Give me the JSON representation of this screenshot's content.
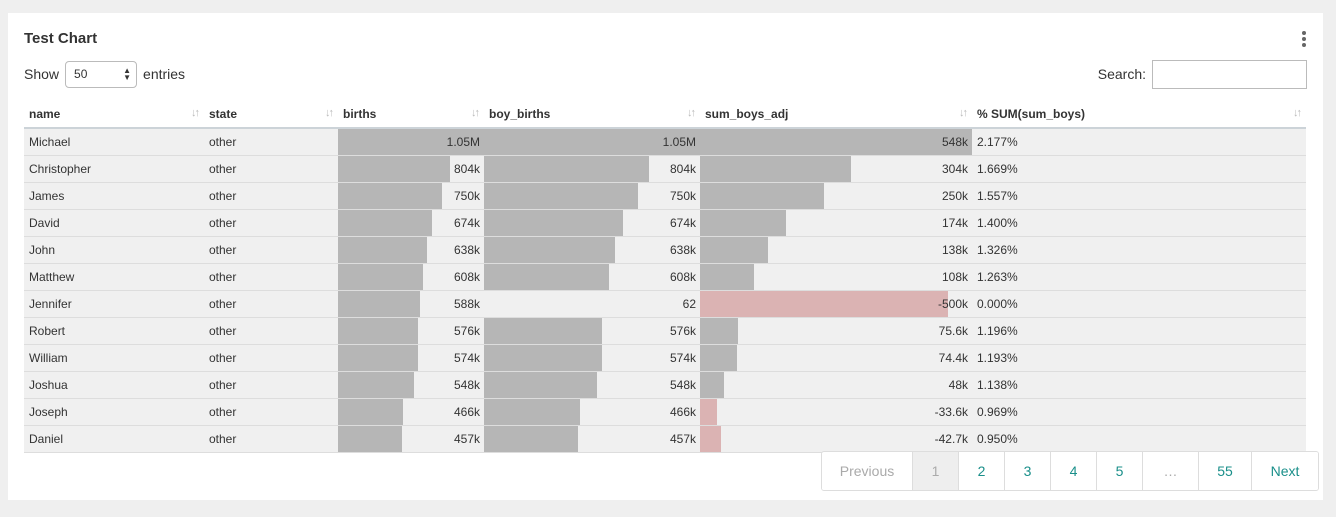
{
  "title": "Test Chart",
  "show_label": "Show",
  "entries_label": "entries",
  "page_size": "50",
  "search_label": "Search:",
  "search_value": "",
  "columns": [
    "name",
    "state",
    "births",
    "boy_births",
    "sum_boys_adj",
    "% SUM(sum_boys)"
  ],
  "rows": [
    {
      "name": "Michael",
      "state": "other",
      "births": "1.05M",
      "boy_births": "1.05M",
      "sum_boys_adj": "548k",
      "pct": "2.177%"
    },
    {
      "name": "Christopher",
      "state": "other",
      "births": "804k",
      "boy_births": "804k",
      "sum_boys_adj": "304k",
      "pct": "1.669%"
    },
    {
      "name": "James",
      "state": "other",
      "births": "750k",
      "boy_births": "750k",
      "sum_boys_adj": "250k",
      "pct": "1.557%"
    },
    {
      "name": "David",
      "state": "other",
      "births": "674k",
      "boy_births": "674k",
      "sum_boys_adj": "174k",
      "pct": "1.400%"
    },
    {
      "name": "John",
      "state": "other",
      "births": "638k",
      "boy_births": "638k",
      "sum_boys_adj": "138k",
      "pct": "1.326%"
    },
    {
      "name": "Matthew",
      "state": "other",
      "births": "608k",
      "boy_births": "608k",
      "sum_boys_adj": "108k",
      "pct": "1.263%"
    },
    {
      "name": "Jennifer",
      "state": "other",
      "births": "588k",
      "boy_births": "62",
      "sum_boys_adj": "-500k",
      "pct": "0.000%"
    },
    {
      "name": "Robert",
      "state": "other",
      "births": "576k",
      "boy_births": "576k",
      "sum_boys_adj": "75.6k",
      "pct": "1.196%"
    },
    {
      "name": "William",
      "state": "other",
      "births": "574k",
      "boy_births": "574k",
      "sum_boys_adj": "74.4k",
      "pct": "1.193%"
    },
    {
      "name": "Joshua",
      "state": "other",
      "births": "548k",
      "boy_births": "548k",
      "sum_boys_adj": "48k",
      "pct": "1.138%"
    },
    {
      "name": "Joseph",
      "state": "other",
      "births": "466k",
      "boy_births": "466k",
      "sum_boys_adj": "-33.6k",
      "pct": "0.969%"
    },
    {
      "name": "Daniel",
      "state": "other",
      "births": "457k",
      "boy_births": "457k",
      "sum_boys_adj": "-42.7k",
      "pct": "0.950%"
    }
  ],
  "bar_values": {
    "births": [
      1050000,
      804000,
      750000,
      674000,
      638000,
      608000,
      588000,
      576000,
      574000,
      548000,
      466000,
      457000
    ],
    "boy_births": [
      1050000,
      804000,
      750000,
      674000,
      638000,
      608000,
      62,
      576000,
      574000,
      548000,
      466000,
      457000
    ],
    "sum_boys_adj": [
      548000,
      304000,
      250000,
      174000,
      138000,
      108000,
      -500000,
      75600,
      74400,
      48000,
      -33600,
      -42700
    ]
  },
  "pagination": [
    "Previous",
    "1",
    "2",
    "3",
    "4",
    "5",
    "…",
    "55",
    "Next"
  ],
  "colors": {
    "bar": "#b6b6b6",
    "negative_bar": "#dbb3b3",
    "link": "#1a8f8a"
  }
}
